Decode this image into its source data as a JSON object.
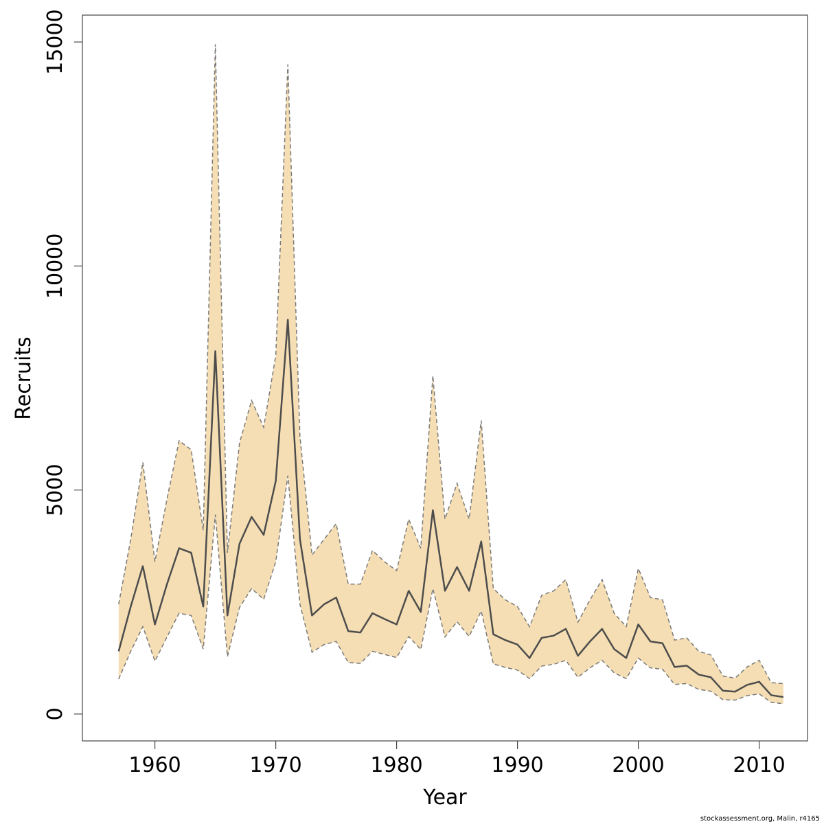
{
  "chart_data": {
    "type": "area",
    "title": "",
    "xlabel": "Year",
    "ylabel": "Recruits",
    "xlim": [
      1954,
      2014
    ],
    "ylim": [
      -600,
      15600
    ],
    "x_ticks": [
      1960,
      1970,
      1980,
      1990,
      2000,
      2010
    ],
    "y_ticks": [
      0,
      5000,
      10000,
      15000
    ],
    "grid": false,
    "colors": {
      "band_fill": "#F5DEB3",
      "band_edge": "#7a7a7a",
      "line": "#4d4d4d",
      "axis": "#444444"
    },
    "x": [
      1957,
      1958,
      1959,
      1960,
      1961,
      1962,
      1963,
      1964,
      1965,
      1966,
      1967,
      1968,
      1969,
      1970,
      1971,
      1972,
      1973,
      1974,
      1975,
      1976,
      1977,
      1978,
      1979,
      1980,
      1981,
      1982,
      1983,
      1984,
      1985,
      1986,
      1987,
      1988,
      1989,
      1990,
      1991,
      1992,
      1993,
      1994,
      1995,
      1996,
      1997,
      1998,
      1999,
      2000,
      2001,
      2002,
      2003,
      2004,
      2005,
      2006,
      2007,
      2008,
      2009,
      2010,
      2011,
      2012
    ],
    "series": [
      {
        "role": "estimate",
        "values": [
          1400,
          2400,
          3300,
          2000,
          2900,
          3700,
          3600,
          2400,
          8100,
          2200,
          3800,
          4400,
          4000,
          5200,
          8800,
          3900,
          2200,
          2450,
          2600,
          1850,
          1820,
          2250,
          2120,
          2000,
          2750,
          2280,
          4550,
          2750,
          3280,
          2750,
          3850,
          1780,
          1650,
          1550,
          1250,
          1700,
          1750,
          1900,
          1300,
          1620,
          1900,
          1450,
          1250,
          2000,
          1620,
          1580,
          1050,
          1080,
          880,
          820,
          520,
          500,
          650,
          720,
          420,
          380
        ]
      },
      {
        "role": "upper",
        "values": [
          2450,
          3900,
          5620,
          3400,
          4800,
          6100,
          5900,
          4100,
          14950,
          3600,
          6050,
          7000,
          6400,
          8000,
          14500,
          6200,
          3550,
          3900,
          4250,
          2900,
          2900,
          3650,
          3400,
          3200,
          4350,
          3700,
          7550,
          4350,
          5150,
          4350,
          6550,
          2800,
          2550,
          2400,
          1950,
          2650,
          2750,
          3000,
          2050,
          2550,
          3000,
          2250,
          1950,
          3250,
          2600,
          2550,
          1650,
          1700,
          1400,
          1320,
          850,
          800,
          1050,
          1200,
          700,
          680
        ]
      },
      {
        "role": "lower",
        "values": [
          780,
          1400,
          1950,
          1180,
          1720,
          2250,
          2200,
          1450,
          4450,
          1280,
          2380,
          2800,
          2560,
          3400,
          5320,
          2450,
          1380,
          1550,
          1620,
          1150,
          1130,
          1400,
          1330,
          1260,
          1730,
          1440,
          2800,
          1720,
          2060,
          1730,
          2300,
          1120,
          1040,
          980,
          790,
          1070,
          1110,
          1200,
          820,
          1030,
          1200,
          920,
          790,
          1250,
          1030,
          1000,
          660,
          680,
          550,
          510,
          320,
          310,
          410,
          450,
          260,
          230
        ]
      }
    ]
  },
  "footer": {
    "credit": "stockassessment.org, Malin, r4165"
  }
}
